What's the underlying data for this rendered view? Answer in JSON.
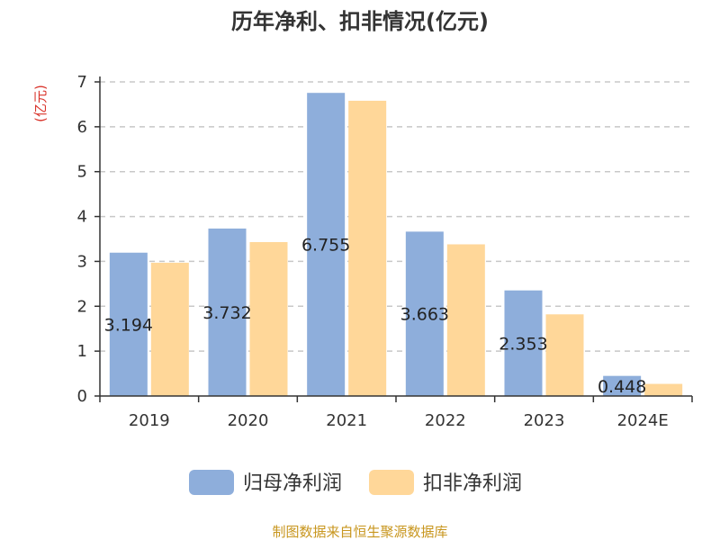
{
  "chart_data": {
    "type": "bar",
    "title": "历年净利、扣非情况(亿元)",
    "ylabel": "(亿元)",
    "categories": [
      "2019",
      "2020",
      "2021",
      "2022",
      "2023",
      "2024E"
    ],
    "series": [
      {
        "name": "归母净利润",
        "values": [
          3.194,
          3.732,
          6.755,
          3.663,
          2.353,
          0.448
        ],
        "color": "#8eaedb",
        "labels": [
          "3.194",
          "3.732",
          "6.755",
          "3.663",
          "2.353",
          "0.448"
        ]
      },
      {
        "name": "扣非净利润",
        "values": [
          2.97,
          3.43,
          6.58,
          3.38,
          1.82,
          0.27
        ],
        "color": "#ffd799"
      }
    ],
    "ylim": [
      0,
      7
    ],
    "yticks": [
      0,
      1,
      2,
      3,
      4,
      5,
      6,
      7
    ],
    "grid": true,
    "grid_style": "dashed",
    "legend_position": "bottom-center",
    "source_note": "制图数据来自恒生聚源数据库",
    "colors": {
      "ylabel": "#d9342b",
      "source": "#c8961e",
      "axis": "#333333",
      "grid": "#c8c8c8"
    }
  }
}
